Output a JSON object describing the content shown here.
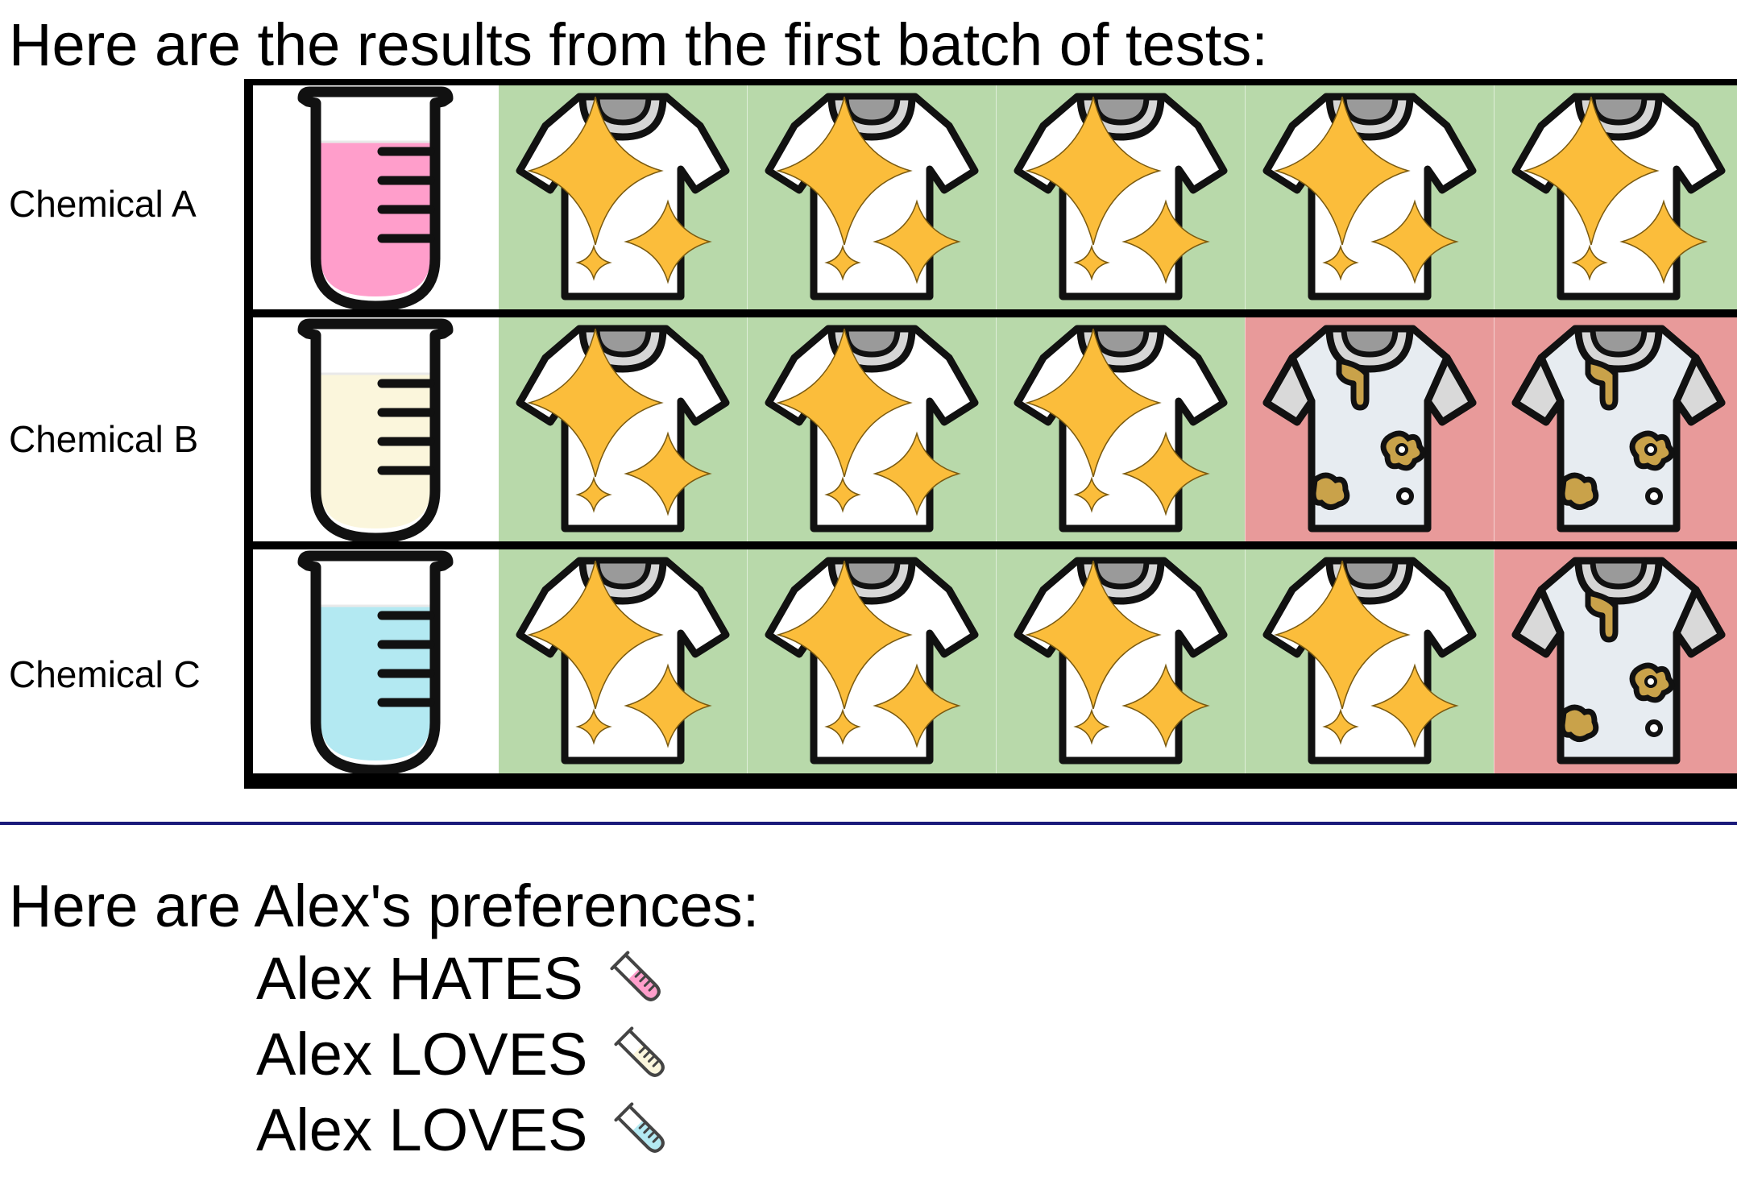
{
  "heading": "Here are the results from the first batch of tests:",
  "rows": [
    {
      "label": "Chemical A",
      "liquid_color": "#ff9ecb",
      "results": [
        "clean",
        "clean",
        "clean",
        "clean",
        "clean"
      ]
    },
    {
      "label": "Chemical B",
      "liquid_color": "#fbf6dc",
      "results": [
        "clean",
        "clean",
        "clean",
        "dirty",
        "dirty"
      ]
    },
    {
      "label": "Chemical C",
      "liquid_color": "#b3e9f2",
      "results": [
        "clean",
        "clean",
        "clean",
        "clean",
        "dirty"
      ]
    }
  ],
  "colors": {
    "clean_bg": "#b8d9aa",
    "dirty_bg": "#e89a9a",
    "sparkle": "#fbbd3b",
    "stain": "#c9a24a",
    "divider": "#1a1a7a"
  },
  "preferences": {
    "heading": "Here are Alex's preferences:",
    "items": [
      {
        "text": "Alex HATES",
        "icon": "pink-test-tube-icon",
        "liquid_color": "#ff9ecb"
      },
      {
        "text": "Alex LOVES",
        "icon": "cream-test-tube-icon",
        "liquid_color": "#fbf6dc"
      },
      {
        "text": "Alex LOVES",
        "icon": "blue-test-tube-icon",
        "liquid_color": "#b3e9f2"
      }
    ]
  }
}
